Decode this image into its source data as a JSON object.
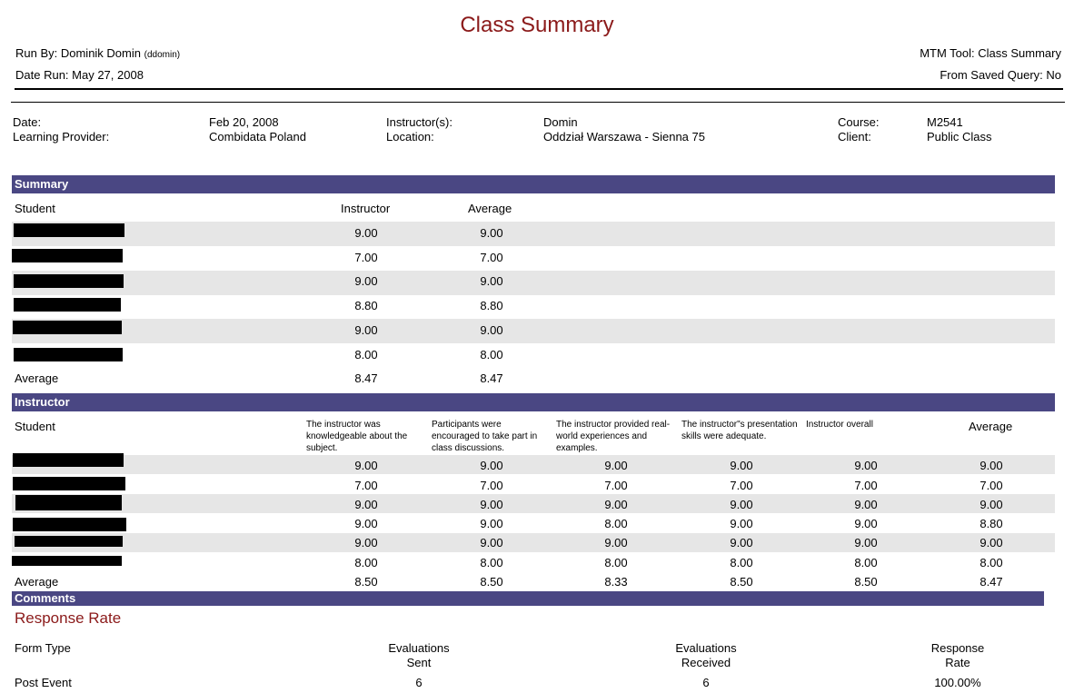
{
  "report": {
    "title": "Class Summary",
    "run_by_label": "Run By: Dominik Domin",
    "run_by_user": "(ddomin)",
    "date_run": "Date Run: May 27, 2008",
    "tool": "MTM Tool: Class Summary",
    "saved_query": "From Saved Query: No"
  },
  "meta": {
    "date_label": "Date:",
    "date_value": "Feb 20, 2008",
    "provider_label": "Learning Provider:",
    "provider_value": "Combidata Poland",
    "instructor_label": "Instructor(s):",
    "instructor_value": "Domin",
    "location_label": "Location:",
    "location_value": "Oddział Warszawa - Sienna 75",
    "course_label": "Course:",
    "course_value": "M2541",
    "client_label": "Client:",
    "client_value": "Public Class"
  },
  "summary": {
    "band": "Summary",
    "headers": {
      "student": "Student",
      "instructor": "Instructor",
      "average": "Average"
    },
    "rows": [
      {
        "instructor": "9.00",
        "average": "9.00"
      },
      {
        "instructor": "7.00",
        "average": "7.00"
      },
      {
        "instructor": "9.00",
        "average": "9.00"
      },
      {
        "instructor": "8.80",
        "average": "8.80"
      },
      {
        "instructor": "9.00",
        "average": "9.00"
      },
      {
        "instructor": "8.00",
        "average": "8.00"
      }
    ],
    "footer": {
      "label": "Average",
      "instructor": "8.47",
      "average": "8.47"
    }
  },
  "instructor": {
    "band": "Instructor",
    "headers": {
      "student": "Student",
      "q1": "The instructor was knowledgeable about the subject.",
      "q2": "Participants were encouraged to take part in class discussions.",
      "q3": "The instructor provided real-world experiences and examples.",
      "q4": "The instructor\"s presentation skills were adequate.",
      "q5": "Instructor overall",
      "average": "Average"
    },
    "rows": [
      [
        "9.00",
        "9.00",
        "9.00",
        "9.00",
        "9.00",
        "9.00"
      ],
      [
        "7.00",
        "7.00",
        "7.00",
        "7.00",
        "7.00",
        "7.00"
      ],
      [
        "9.00",
        "9.00",
        "9.00",
        "9.00",
        "9.00",
        "9.00"
      ],
      [
        "9.00",
        "9.00",
        "8.00",
        "9.00",
        "9.00",
        "8.80"
      ],
      [
        "9.00",
        "9.00",
        "9.00",
        "9.00",
        "9.00",
        "9.00"
      ],
      [
        "8.00",
        "8.00",
        "8.00",
        "8.00",
        "8.00",
        "8.00"
      ]
    ],
    "footer": {
      "label": "Average",
      "values": [
        "8.50",
        "8.50",
        "8.33",
        "8.50",
        "8.50",
        "8.47"
      ]
    }
  },
  "comments": {
    "band": "Comments"
  },
  "response": {
    "title": "Response Rate",
    "headers": {
      "form_type": "Form Type",
      "sent_1": "Evaluations",
      "sent_2": "Sent",
      "received_1": "Evaluations",
      "received_2": "Received",
      "rate_1": "Response",
      "rate_2": "Rate"
    },
    "row": {
      "form_type": "Post Event",
      "sent": "6",
      "received": "6",
      "rate": "100.00%"
    }
  }
}
